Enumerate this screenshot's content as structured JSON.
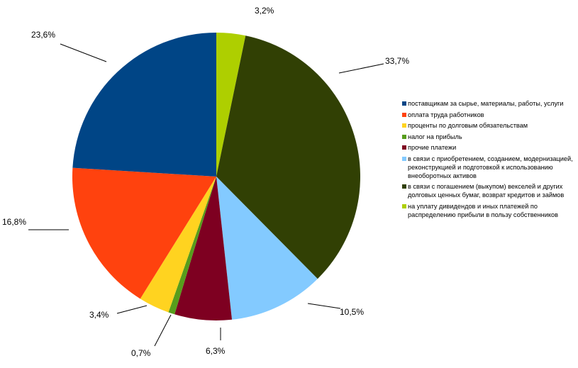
{
  "chart_data": {
    "type": "pie",
    "title": "",
    "legend_position": "right",
    "slices": [
      {
        "label": "поставщикам за сырье, материалы, работы, услуги",
        "value": 23.6,
        "display": "23,6%",
        "color": "#004586"
      },
      {
        "label": "оплата труда работников",
        "value": 16.8,
        "display": "16,8%",
        "color": "#ff420e"
      },
      {
        "label": "проценты по долговым обязательствам",
        "value": 3.4,
        "display": "3,4%",
        "color": "#ffd320"
      },
      {
        "label": "налог на прибыль",
        "value": 0.7,
        "display": "0,7%",
        "color": "#579d1c"
      },
      {
        "label": "прочие платежи",
        "value": 6.3,
        "display": "6,3%",
        "color": "#7e0021"
      },
      {
        "label": "в связи с приобретением, созданием, модернизацией, реконструкцией и подготовкой к использованию внеоборотных активов",
        "value": 10.5,
        "display": "10,5%",
        "color": "#83caff"
      },
      {
        "label": "в связи с погашением (выкупом) векселей и других долговых ценных бумаг, возврат кредитов и займов",
        "value": 33.7,
        "display": "33,7%",
        "color": "#314004"
      },
      {
        "label": "на уплату дивидендов и иных платежей по распределению прибыли в пользу собственников",
        "value": 3.2,
        "display": "3,2%",
        "color": "#aecf00"
      }
    ]
  }
}
